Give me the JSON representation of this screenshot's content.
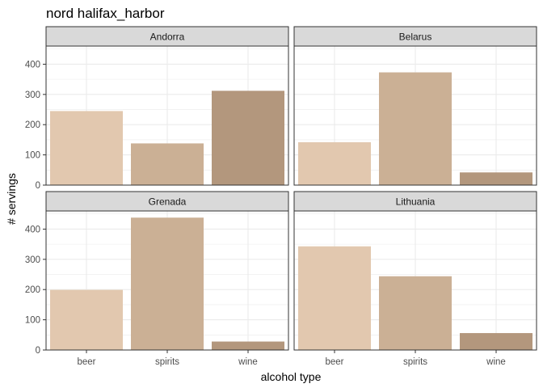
{
  "chart_data": {
    "type": "bar",
    "title": "nord halifax_harbor",
    "xlabel": "alcohol type",
    "ylabel": "# servings",
    "categories": [
      "beer",
      "spirits",
      "wine"
    ],
    "ylim": [
      0,
      460
    ],
    "yticks": [
      0,
      100,
      200,
      300,
      400
    ],
    "grid": true,
    "colors": {
      "beer": "#E2C8AF",
      "spirits": "#CBB095",
      "wine": "#B3977D",
      "panel_border": "#333333",
      "strip_fill": "#D9D9D9",
      "grid": "#EBEBEB"
    },
    "panels": [
      {
        "country": "Andorra",
        "values": [
          245,
          138,
          312
        ]
      },
      {
        "country": "Belarus",
        "values": [
          142,
          373,
          42
        ]
      },
      {
        "country": "Grenada",
        "values": [
          199,
          438,
          28
        ]
      },
      {
        "country": "Lithuania",
        "values": [
          343,
          244,
          56
        ]
      }
    ]
  }
}
